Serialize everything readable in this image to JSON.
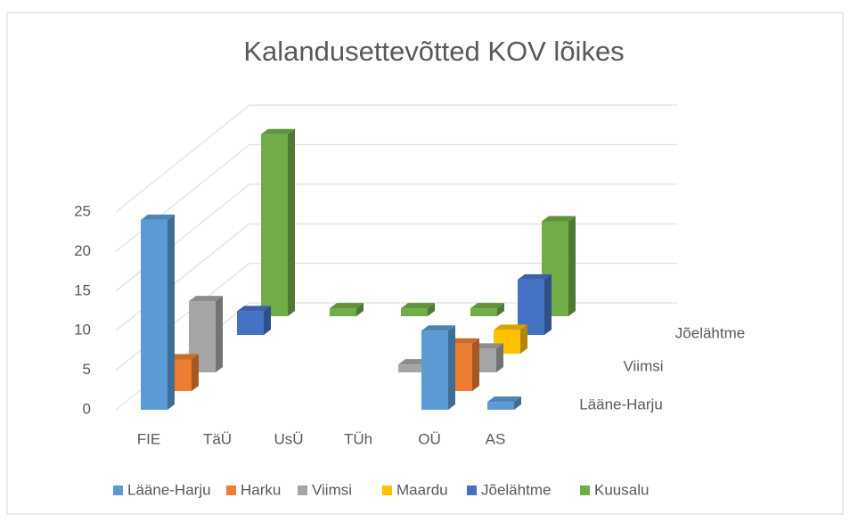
{
  "chart_data": {
    "type": "bar3d",
    "title": "Kalandusettevõtted KOV lõikes",
    "categories": [
      "FIE",
      "TäÜ",
      "UsÜ",
      "TÜh",
      "OÜ",
      "AS"
    ],
    "series": [
      {
        "name": "Lääne-Harju",
        "color": "#5b9bd5",
        "values": [
          24,
          null,
          null,
          null,
          10,
          1
        ]
      },
      {
        "name": "Harku",
        "color": "#ed7d31",
        "values": [
          4,
          null,
          null,
          null,
          6,
          null
        ]
      },
      {
        "name": "Viimsi",
        "color": "#a5a5a5",
        "values": [
          9,
          null,
          null,
          1,
          3,
          null
        ]
      },
      {
        "name": "Maardu",
        "color": "#ffc000",
        "values": [
          null,
          null,
          null,
          null,
          3,
          null
        ]
      },
      {
        "name": "Jõelähtme",
        "color": "#4472c4",
        "values": [
          3,
          null,
          null,
          null,
          7,
          null
        ]
      },
      {
        "name": "Kuusalu",
        "color": "#70ad47",
        "values": [
          23,
          1,
          1,
          1,
          12,
          null
        ]
      }
    ],
    "ylim": [
      0,
      25
    ],
    "yticks": [
      0,
      5,
      10,
      15,
      20,
      25
    ],
    "grid": true,
    "legend": "bottom"
  }
}
